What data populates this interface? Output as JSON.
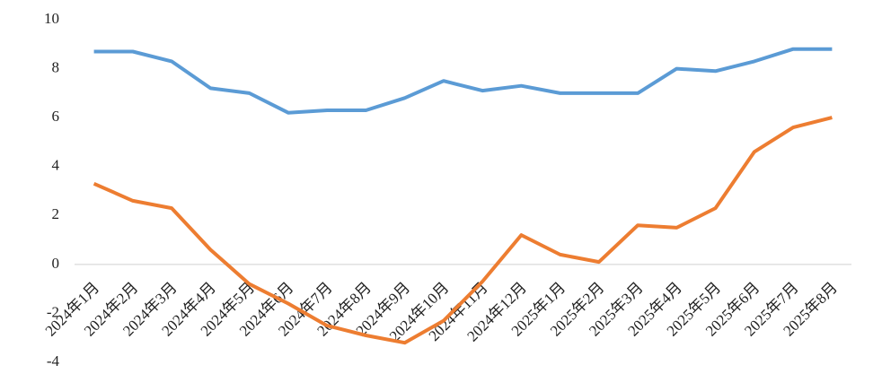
{
  "chart_data": {
    "type": "line",
    "categories": [
      "2024年1月",
      "2024年2月",
      "2024年3月",
      "2024年4月",
      "2024年5月",
      "2024年6月",
      "2024年7月",
      "2024年8月",
      "2024年9月",
      "2024年10月",
      "2024年11月",
      "2024年12月",
      "2025年1月",
      "2025年2月",
      "2025年3月",
      "2025年4月",
      "2025年5月",
      "2025年6月",
      "2025年7月",
      "2025年8月"
    ],
    "series": [
      {
        "color": "#5b9bd5",
        "values": [
          8.7,
          8.7,
          8.3,
          7.2,
          7.0,
          6.2,
          6.3,
          6.3,
          6.8,
          7.5,
          7.1,
          7.3,
          7.0,
          7.0,
          7.0,
          8.0,
          7.9,
          8.3,
          8.8,
          8.8
        ]
      },
      {
        "color": "#ed7d31",
        "values": [
          3.3,
          2.6,
          2.3,
          0.6,
          -0.8,
          -1.6,
          -2.5,
          -2.9,
          -3.2,
          -2.3,
          -0.7,
          1.2,
          0.4,
          0.1,
          1.6,
          1.5,
          2.3,
          4.6,
          5.6,
          6.0
        ]
      }
    ],
    "ylim": [
      -4,
      10
    ],
    "yticks": [
      -4,
      -2,
      0,
      2,
      4,
      6,
      8,
      10
    ]
  }
}
